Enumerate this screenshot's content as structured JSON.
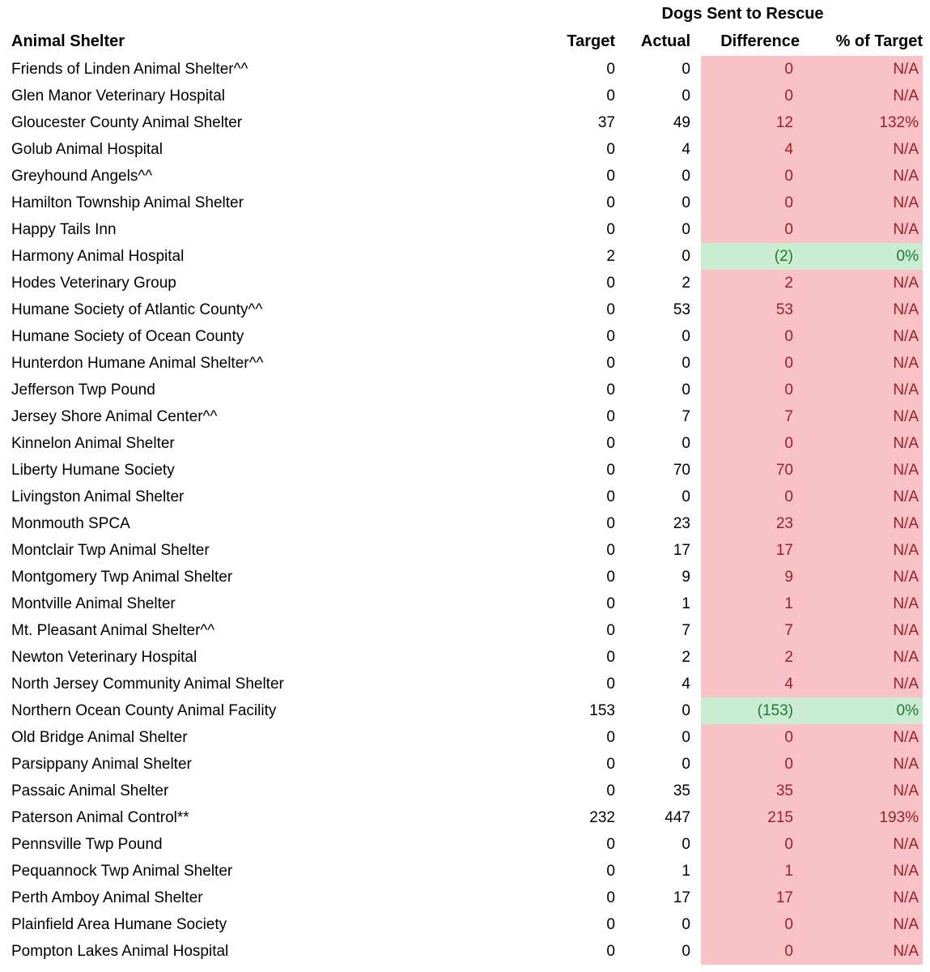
{
  "table": {
    "title": "Dogs Sent to Rescue",
    "columns": {
      "shelter": "Animal Shelter",
      "target": "Target",
      "actual": "Actual",
      "difference": "Difference",
      "pct_of_target": "% of Target"
    },
    "rows": [
      {
        "name": "Friends of Linden Animal Shelter^^",
        "target": "0",
        "actual": "0",
        "difference": "0",
        "pct_of_target": "N/A",
        "highlight": "bad"
      },
      {
        "name": "Glen Manor Veterinary Hospital",
        "target": "0",
        "actual": "0",
        "difference": "0",
        "pct_of_target": "N/A",
        "highlight": "bad"
      },
      {
        "name": "Gloucester County Animal Shelter",
        "target": "37",
        "actual": "49",
        "difference": "12",
        "pct_of_target": "132%",
        "highlight": "bad"
      },
      {
        "name": "Golub Animal Hospital",
        "target": "0",
        "actual": "4",
        "difference": "4",
        "pct_of_target": "N/A",
        "highlight": "bad"
      },
      {
        "name": "Greyhound Angels^^",
        "target": "0",
        "actual": "0",
        "difference": "0",
        "pct_of_target": "N/A",
        "highlight": "bad"
      },
      {
        "name": "Hamilton Township Animal Shelter",
        "target": "0",
        "actual": "0",
        "difference": "0",
        "pct_of_target": "N/A",
        "highlight": "bad"
      },
      {
        "name": "Happy Tails Inn",
        "target": "0",
        "actual": "0",
        "difference": "0",
        "pct_of_target": "N/A",
        "highlight": "bad"
      },
      {
        "name": "Harmony Animal Hospital",
        "target": "2",
        "actual": "0",
        "difference": "(2)",
        "pct_of_target": "0%",
        "highlight": "good"
      },
      {
        "name": "Hodes Veterinary Group",
        "target": "0",
        "actual": "2",
        "difference": "2",
        "pct_of_target": "N/A",
        "highlight": "bad"
      },
      {
        "name": "Humane Society of Atlantic County^^",
        "target": "0",
        "actual": "53",
        "difference": "53",
        "pct_of_target": "N/A",
        "highlight": "bad"
      },
      {
        "name": "Humane Society of Ocean County",
        "target": "0",
        "actual": "0",
        "difference": "0",
        "pct_of_target": "N/A",
        "highlight": "bad"
      },
      {
        "name": "Hunterdon Humane Animal Shelter^^",
        "target": "0",
        "actual": "0",
        "difference": "0",
        "pct_of_target": "N/A",
        "highlight": "bad"
      },
      {
        "name": "Jefferson Twp Pound",
        "target": "0",
        "actual": "0",
        "difference": "0",
        "pct_of_target": "N/A",
        "highlight": "bad"
      },
      {
        "name": "Jersey Shore Animal Center^^",
        "target": "0",
        "actual": "7",
        "difference": "7",
        "pct_of_target": "N/A",
        "highlight": "bad"
      },
      {
        "name": "Kinnelon Animal Shelter",
        "target": "0",
        "actual": "0",
        "difference": "0",
        "pct_of_target": "N/A",
        "highlight": "bad"
      },
      {
        "name": "Liberty Humane Society",
        "target": "0",
        "actual": "70",
        "difference": "70",
        "pct_of_target": "N/A",
        "highlight": "bad"
      },
      {
        "name": "Livingston Animal Shelter",
        "target": "0",
        "actual": "0",
        "difference": "0",
        "pct_of_target": "N/A",
        "highlight": "bad"
      },
      {
        "name": "Monmouth SPCA",
        "target": "0",
        "actual": "23",
        "difference": "23",
        "pct_of_target": "N/A",
        "highlight": "bad"
      },
      {
        "name": "Montclair Twp Animal Shelter",
        "target": "0",
        "actual": "17",
        "difference": "17",
        "pct_of_target": "N/A",
        "highlight": "bad"
      },
      {
        "name": "Montgomery Twp Animal Shelter",
        "target": "0",
        "actual": "9",
        "difference": "9",
        "pct_of_target": "N/A",
        "highlight": "bad"
      },
      {
        "name": "Montville Animal Shelter",
        "target": "0",
        "actual": "1",
        "difference": "1",
        "pct_of_target": "N/A",
        "highlight": "bad"
      },
      {
        "name": "Mt. Pleasant Animal Shelter^^",
        "target": "0",
        "actual": "7",
        "difference": "7",
        "pct_of_target": "N/A",
        "highlight": "bad"
      },
      {
        "name": "Newton Veterinary Hospital",
        "target": "0",
        "actual": "2",
        "difference": "2",
        "pct_of_target": "N/A",
        "highlight": "bad"
      },
      {
        "name": "North Jersey Community Animal Shelter",
        "target": "0",
        "actual": "4",
        "difference": "4",
        "pct_of_target": "N/A",
        "highlight": "bad"
      },
      {
        "name": "Northern Ocean County Animal Facility",
        "target": "153",
        "actual": "0",
        "difference": "(153)",
        "pct_of_target": "0%",
        "highlight": "good"
      },
      {
        "name": "Old Bridge Animal Shelter",
        "target": "0",
        "actual": "0",
        "difference": "0",
        "pct_of_target": "N/A",
        "highlight": "bad"
      },
      {
        "name": "Parsippany Animal Shelter",
        "target": "0",
        "actual": "0",
        "difference": "0",
        "pct_of_target": "N/A",
        "highlight": "bad"
      },
      {
        "name": "Passaic Animal Shelter",
        "target": "0",
        "actual": "35",
        "difference": "35",
        "pct_of_target": "N/A",
        "highlight": "bad"
      },
      {
        "name": "Paterson Animal Control**",
        "target": "232",
        "actual": "447",
        "difference": "215",
        "pct_of_target": "193%",
        "highlight": "bad"
      },
      {
        "name": "Pennsville Twp Pound",
        "target": "0",
        "actual": "0",
        "difference": "0",
        "pct_of_target": "N/A",
        "highlight": "bad"
      },
      {
        "name": "Pequannock Twp Animal Shelter",
        "target": "0",
        "actual": "1",
        "difference": "1",
        "pct_of_target": "N/A",
        "highlight": "bad"
      },
      {
        "name": "Perth Amboy Animal Shelter",
        "target": "0",
        "actual": "17",
        "difference": "17",
        "pct_of_target": "N/A",
        "highlight": "bad"
      },
      {
        "name": "Plainfield Area Humane Society",
        "target": "0",
        "actual": "0",
        "difference": "0",
        "pct_of_target": "N/A",
        "highlight": "bad"
      },
      {
        "name": "Pompton Lakes Animal Hospital",
        "target": "0",
        "actual": "0",
        "difference": "0",
        "pct_of_target": "N/A",
        "highlight": "bad"
      }
    ]
  },
  "colors": {
    "negative_fill": "#f8c2c7",
    "negative_text": "#9c1f27",
    "positive_fill": "#c9ecd2",
    "positive_text": "#1e7b34"
  }
}
